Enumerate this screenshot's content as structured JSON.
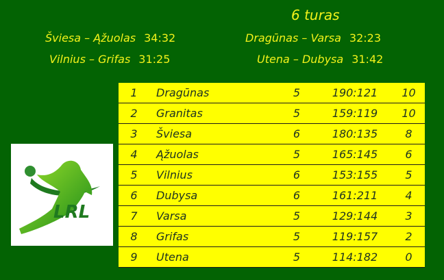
{
  "round_title": "6 turas",
  "matches": [
    {
      "home": "Šviesa",
      "away": "Ąžuolas",
      "score": "34:32"
    },
    {
      "home": "Vilnius",
      "away": "Grifas",
      "score": "31:25"
    },
    {
      "home": "Dragūnas",
      "away": "Varsa",
      "score": "32:23"
    },
    {
      "home": "Utena",
      "away": "Dubysa",
      "score": "31:42"
    }
  ],
  "standings": [
    {
      "rank": "1",
      "team": "Dragūnas",
      "games": "5",
      "goals": "190:121",
      "points": "10"
    },
    {
      "rank": "2",
      "team": "Granitas",
      "games": "5",
      "goals": "159:119",
      "points": "10"
    },
    {
      "rank": "3",
      "team": "Šviesa",
      "games": "6",
      "goals": "180:135",
      "points": "8"
    },
    {
      "rank": "4",
      "team": "Ąžuolas",
      "games": "5",
      "goals": "165:145",
      "points": "6"
    },
    {
      "rank": "5",
      "team": "Vilnius",
      "games": "6",
      "goals": "153:155",
      "points": "5"
    },
    {
      "rank": "6",
      "team": "Dubysa",
      "games": "6",
      "goals": "161:211",
      "points": "4"
    },
    {
      "rank": "7",
      "team": "Varsa",
      "games": "5",
      "goals": "129:144",
      "points": "3"
    },
    {
      "rank": "8",
      "team": "Grifas",
      "games": "5",
      "goals": "119:157",
      "points": "2"
    },
    {
      "rank": "9",
      "team": "Utena",
      "games": "5",
      "goals": "114:182",
      "points": "0"
    }
  ],
  "logo": {
    "text": "LRL"
  },
  "colors": {
    "background": "#036303",
    "header_text": "#f2f21a",
    "table_bg": "#ffff00"
  }
}
